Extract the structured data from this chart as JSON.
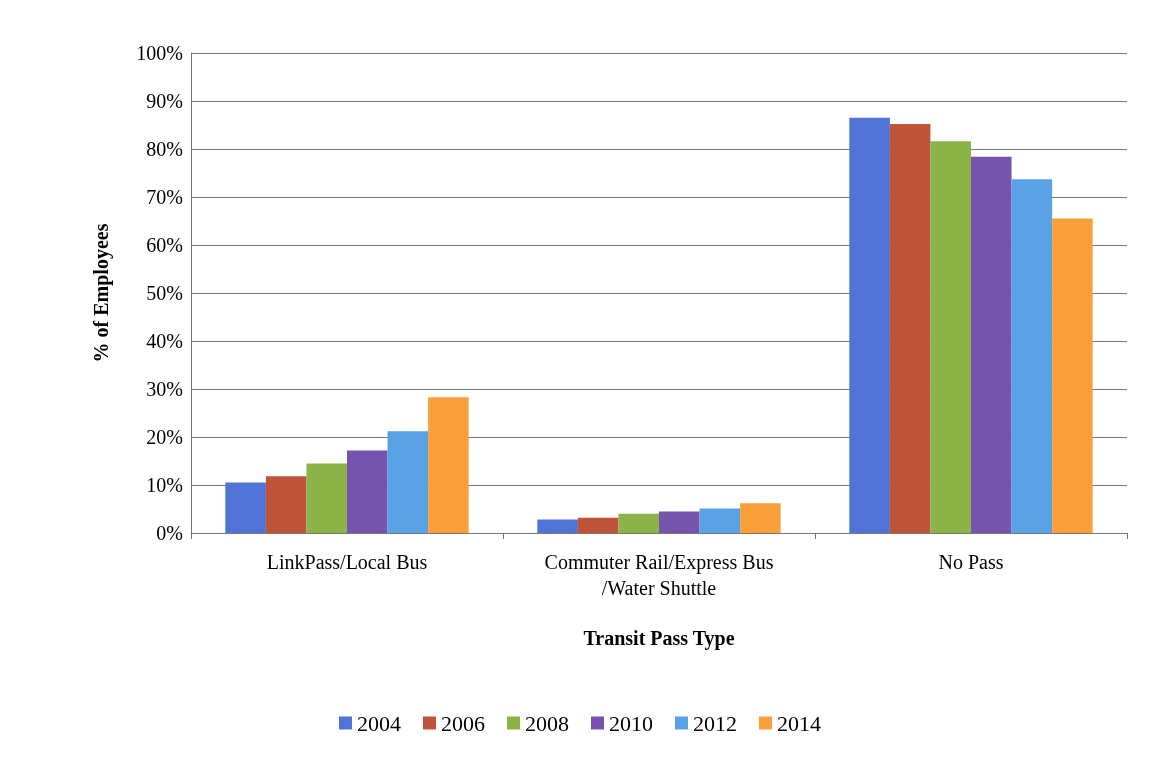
{
  "chart_data": {
    "type": "bar",
    "xlabel": "Transit Pass Type",
    "ylabel": "% of Employees",
    "categories": [
      "LinkPass/Local Bus",
      "Commuter Rail/Express Bus/Water Shuttle",
      "No Pass"
    ],
    "series": [
      {
        "name": "2004",
        "color": "#4f74d6",
        "values": [
          10.5,
          2.8,
          86.5
        ]
      },
      {
        "name": "2006",
        "color": "#c0543a",
        "values": [
          11.8,
          3.2,
          85.2
        ]
      },
      {
        "name": "2008",
        "color": "#8cb347",
        "values": [
          14.5,
          4.0,
          81.6
        ]
      },
      {
        "name": "2010",
        "color": "#7654ad",
        "values": [
          17.2,
          4.5,
          78.4
        ]
      },
      {
        "name": "2012",
        "color": "#5aa2e6",
        "values": [
          21.2,
          5.1,
          73.7
        ]
      },
      {
        "name": "2014",
        "color": "#f9a03a",
        "values": [
          28.3,
          6.2,
          65.5
        ]
      }
    ],
    "ylim": [
      0,
      100
    ],
    "yticks": [
      {
        "value": 0,
        "label": "0%"
      },
      {
        "value": 10,
        "label": "10%"
      },
      {
        "value": 20,
        "label": "20%"
      },
      {
        "value": 30,
        "label": "30%"
      },
      {
        "value": 40,
        "label": "40%"
      },
      {
        "value": 50,
        "label": "50%"
      },
      {
        "value": 60,
        "label": "60%"
      },
      {
        "value": 70,
        "label": "70%"
      },
      {
        "value": 80,
        "label": "80%"
      },
      {
        "value": 90,
        "label": "90%"
      },
      {
        "value": 100,
        "label": "100%"
      }
    ],
    "grid": "y",
    "legend": "bottom"
  }
}
